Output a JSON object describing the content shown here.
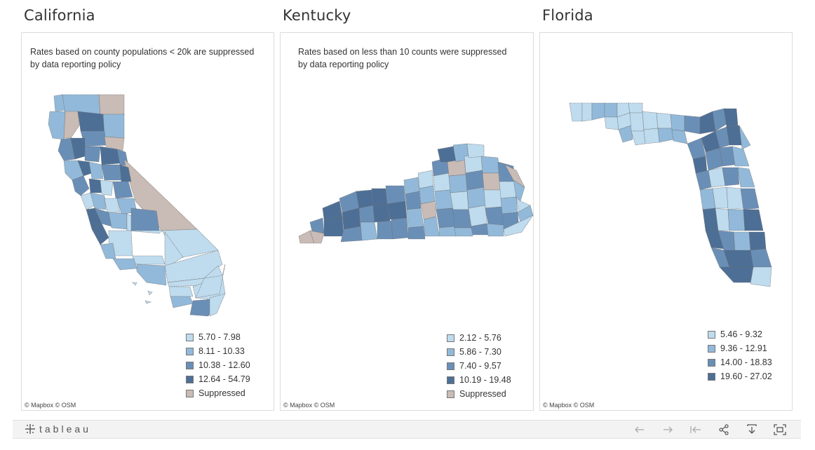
{
  "panels": [
    {
      "title": "California",
      "note_line1": "Rates based on county populations < 20k are suppressed",
      "note_line2": "by data reporting policy",
      "legend": [
        {
          "label": "5.70 - 7.98",
          "color": "#bfdbee"
        },
        {
          "label": "8.11 - 10.33",
          "color": "#92b9d9"
        },
        {
          "label": "10.38 - 12.60",
          "color": "#6a8fb7"
        },
        {
          "label": "12.64 - 54.79",
          "color": "#4d6f96"
        },
        {
          "label": "Suppressed",
          "color": "#c9bbb5"
        }
      ],
      "attribution": "© Mapbox  © OSM"
    },
    {
      "title": "Kentucky",
      "note_line1": "Rates based on less than 10 counts were suppressed",
      "note_line2": "by data reporting policy",
      "legend": [
        {
          "label": "2.12 - 5.76",
          "color": "#bfdbee"
        },
        {
          "label": "5.86 - 7.30",
          "color": "#92b9d9"
        },
        {
          "label": "7.40 - 9.57",
          "color": "#6a8fb7"
        },
        {
          "label": "10.19 - 19.48",
          "color": "#4d6f96"
        },
        {
          "label": "Suppressed",
          "color": "#c9bbb5"
        }
      ],
      "attribution": "© Mapbox  © OSM"
    },
    {
      "title": "Florida",
      "legend": [
        {
          "label": "5.46 - 9.32",
          "color": "#bfdbee"
        },
        {
          "label": "9.36 - 12.91",
          "color": "#92b9d9"
        },
        {
          "label": "14.00 - 18.83",
          "color": "#6a8fb7"
        },
        {
          "label": "19.60 - 27.02",
          "color": "#4d6f96"
        }
      ],
      "attribution": "© Mapbox  © OSM"
    }
  ],
  "toolbar": {
    "logo_text": "tableau",
    "icons": [
      "undo-icon",
      "redo-icon",
      "revert-icon",
      "share-icon",
      "download-icon",
      "fullscreen-icon"
    ]
  }
}
